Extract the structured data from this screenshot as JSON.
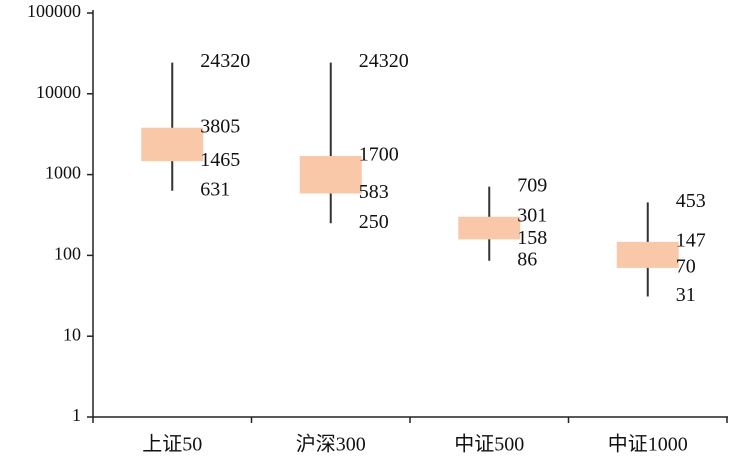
{
  "chart_data": {
    "type": "range",
    "categories": [
      "上证50",
      "沪深300",
      "中证500",
      "中证1000"
    ],
    "max": [
      24320,
      24320,
      709,
      453
    ],
    "high": [
      3805,
      1700,
      301,
      147
    ],
    "low": [
      1465,
      583,
      158,
      70
    ],
    "min": [
      631,
      250,
      86,
      31
    ],
    "color": "#f8c8a8",
    "whisker_color": "#333333",
    "log_scale": true,
    "ylim": [
      1,
      100000
    ],
    "yticks": [
      1,
      10,
      100,
      1000,
      10000,
      100000
    ]
  }
}
